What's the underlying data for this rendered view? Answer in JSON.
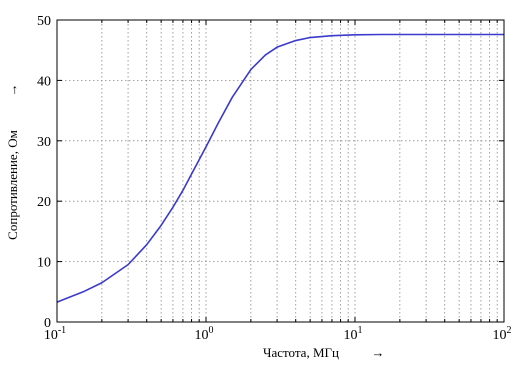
{
  "chart_data": {
    "type": "line",
    "title": "",
    "xlabel": "Частота, МГц",
    "ylabel": "Сопротивление, Ом",
    "label_arrow": "→",
    "xscale": "log",
    "xlim": [
      0.1,
      100
    ],
    "ylim": [
      0,
      50
    ],
    "grid": true,
    "x_ticks": [
      {
        "base": "10",
        "exp": "-1",
        "value": 0.1
      },
      {
        "base": "10",
        "exp": "0",
        "value": 1
      },
      {
        "base": "10",
        "exp": "1",
        "value": 10
      },
      {
        "base": "10",
        "exp": "2",
        "value": 100
      }
    ],
    "y_ticks": [
      {
        "label": "0",
        "value": 0
      },
      {
        "label": "10",
        "value": 10
      },
      {
        "label": "20",
        "value": 20
      },
      {
        "label": "30",
        "value": 30
      },
      {
        "label": "40",
        "value": 40
      },
      {
        "label": "50",
        "value": 50
      }
    ],
    "series": [
      {
        "color": "#3a3acc",
        "x": [
          0.1,
          0.15,
          0.2,
          0.3,
          0.4,
          0.5,
          0.6,
          0.7,
          0.8,
          1.0,
          1.2,
          1.5,
          2.0,
          2.5,
          3.0,
          4.0,
          5.0,
          7.0,
          10,
          15,
          20,
          30,
          50,
          70,
          100
        ],
        "y": [
          3.3,
          5.0,
          6.5,
          9.5,
          12.8,
          16.0,
          19.0,
          21.8,
          24.5,
          29.0,
          32.8,
          37.2,
          41.8,
          44.2,
          45.5,
          46.6,
          47.1,
          47.4,
          47.55,
          47.6,
          47.6,
          47.6,
          47.6,
          47.6,
          47.6
        ]
      }
    ]
  }
}
